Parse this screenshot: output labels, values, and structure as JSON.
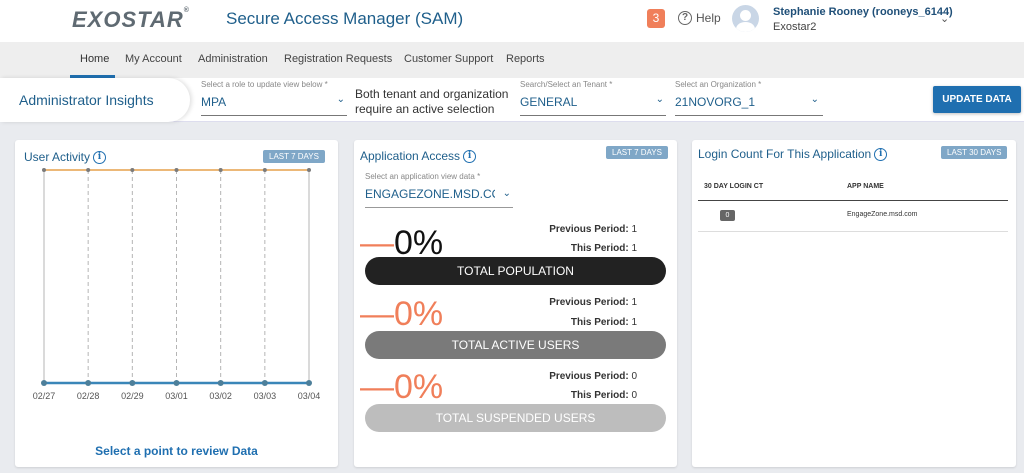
{
  "header": {
    "logo": "EXOSTAR",
    "logo_mark": "®",
    "app_title": "Secure Access Manager (SAM)",
    "notification_count": "3",
    "help_label": "Help",
    "user_name": "Stephanie Rooney (rooneys_6144)",
    "user_org": "Exostar2"
  },
  "nav": {
    "items": [
      "Home",
      "My Account",
      "Administration",
      "Registration Requests",
      "Customer Support",
      "Reports"
    ],
    "active": "Home"
  },
  "selection": {
    "title": "Administrator Insights",
    "role_label": "Select a role to update view below *",
    "role_value": "MPA",
    "note_line1": "Both tenant and organization",
    "note_line2": "require an active selection",
    "tenant_label": "Search/Select an Tenant *",
    "tenant_value": "GENERAL",
    "org_label": "Select an Organization *",
    "org_value": "21NOVORG_1",
    "update_button": "UPDATE DATA"
  },
  "user_activity": {
    "title": "User Activity",
    "badge": "LAST 7 DAYS",
    "review_link": "Select a point to review Data"
  },
  "chart_data": {
    "type": "line",
    "title": "User Activity",
    "x": [
      "02/27",
      "02/28",
      "02/29",
      "03/01",
      "03/02",
      "03/03",
      "03/04"
    ],
    "series": [
      {
        "values": [
          1,
          1,
          1,
          1,
          1,
          1,
          1
        ],
        "color": "#e5a04c"
      },
      {
        "values": [
          0,
          0,
          0,
          0,
          0,
          0,
          0
        ],
        "color": "#3a86b8"
      }
    ],
    "ylim": [
      0,
      1
    ],
    "grid": "vertical-dashed"
  },
  "application_access": {
    "title": "Application Access",
    "badge": "LAST 7 DAYS",
    "select_label": "Select an application view data *",
    "select_value": "ENGAGEZONE.MSD.COM",
    "previous_label": "Previous Period:",
    "this_label": "This Period:",
    "metrics": [
      {
        "label": "TOTAL POPULATION",
        "percent": "0%",
        "dash": "—",
        "previous": "1",
        "this": "1",
        "bar_color": "#222222",
        "pct_color": "#111111"
      },
      {
        "label": "TOTAL ACTIVE USERS",
        "percent": "0%",
        "dash": "—",
        "previous": "1",
        "this": "1",
        "bar_color": "#7a7a7a",
        "pct_color": "#f07f5a"
      },
      {
        "label": "TOTAL SUSPENDED USERS",
        "percent": "0%",
        "dash": "—",
        "previous": "0",
        "this": "0",
        "bar_color": "#bdbdbd",
        "pct_color": "#f07f5a"
      }
    ]
  },
  "login_count": {
    "title": "Login Count For This Application",
    "badge": "LAST 30 DAYS",
    "col_count": "30 DAY LOGIN CT",
    "col_app": "APP NAME",
    "rows": [
      {
        "count": "0",
        "app": "EngageZone.msd.com"
      }
    ]
  },
  "icons": {
    "info": "info-icon",
    "help": "help-circle-icon",
    "chevron": "chevron-down-icon",
    "avatar": "user-avatar-icon"
  }
}
